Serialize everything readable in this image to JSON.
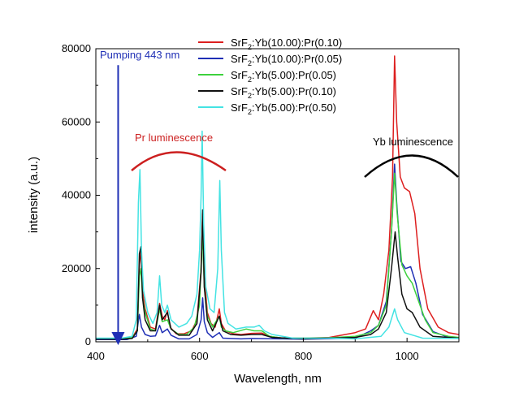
{
  "chart_data": {
    "type": "line",
    "title": "",
    "xlabel": "Wavelength, nm",
    "ylabel": "intensity (a.u.)",
    "xlim": [
      400,
      1100
    ],
    "ylim": [
      0,
      80000
    ],
    "x_ticks": [
      400,
      600,
      800,
      1000
    ],
    "y_ticks": [
      0,
      20000,
      40000,
      60000,
      80000
    ],
    "legend_position": "top-center",
    "series": [
      {
        "name_parts": [
          "SrF",
          "2",
          ":Yb(10.00):Pr(0.10)"
        ],
        "color": "#dd1f1f",
        "points": [
          [
            400,
            900
          ],
          [
            440,
            900
          ],
          [
            470,
            1100
          ],
          [
            480,
            3500
          ],
          [
            484,
            21000
          ],
          [
            487,
            25000
          ],
          [
            490,
            14000
          ],
          [
            495,
            9000
          ],
          [
            505,
            4000
          ],
          [
            515,
            3500
          ],
          [
            523,
            10500
          ],
          [
            528,
            7000
          ],
          [
            533,
            6000
          ],
          [
            538,
            8500
          ],
          [
            543,
            4000
          ],
          [
            555,
            2200
          ],
          [
            570,
            2200
          ],
          [
            585,
            3000
          ],
          [
            595,
            6000
          ],
          [
            603,
            20000
          ],
          [
            606,
            35000
          ],
          [
            609,
            18000
          ],
          [
            615,
            8000
          ],
          [
            622,
            5000
          ],
          [
            630,
            4000
          ],
          [
            638,
            9000
          ],
          [
            642,
            5000
          ],
          [
            650,
            3000
          ],
          [
            665,
            2200
          ],
          [
            680,
            2000
          ],
          [
            700,
            2300
          ],
          [
            720,
            2400
          ],
          [
            735,
            1500
          ],
          [
            760,
            1000
          ],
          [
            800,
            1000
          ],
          [
            850,
            1200
          ],
          [
            900,
            2500
          ],
          [
            920,
            3500
          ],
          [
            935,
            8500
          ],
          [
            945,
            6000
          ],
          [
            955,
            13000
          ],
          [
            965,
            25000
          ],
          [
            972,
            45000
          ],
          [
            976,
            78000
          ],
          [
            980,
            60000
          ],
          [
            987,
            45000
          ],
          [
            995,
            42000
          ],
          [
            1005,
            41000
          ],
          [
            1015,
            35000
          ],
          [
            1025,
            20000
          ],
          [
            1040,
            9000
          ],
          [
            1060,
            4000
          ],
          [
            1080,
            2500
          ],
          [
            1100,
            2000
          ]
        ]
      },
      {
        "name_parts": [
          "SrF",
          "2",
          ":Yb(10.00):Pr(0.05)"
        ],
        "color": "#1f2fb5",
        "points": [
          [
            400,
            600
          ],
          [
            460,
            600
          ],
          [
            478,
            1500
          ],
          [
            484,
            7500
          ],
          [
            488,
            4000
          ],
          [
            495,
            2000
          ],
          [
            505,
            1500
          ],
          [
            515,
            1600
          ],
          [
            523,
            4500
          ],
          [
            528,
            2500
          ],
          [
            538,
            3500
          ],
          [
            545,
            1800
          ],
          [
            560,
            800
          ],
          [
            580,
            800
          ],
          [
            595,
            2000
          ],
          [
            603,
            6000
          ],
          [
            606,
            12000
          ],
          [
            609,
            5500
          ],
          [
            615,
            2500
          ],
          [
            625,
            1200
          ],
          [
            638,
            2500
          ],
          [
            645,
            1000
          ],
          [
            680,
            800
          ],
          [
            700,
            900
          ],
          [
            800,
            700
          ],
          [
            900,
            1000
          ],
          [
            930,
            3000
          ],
          [
            945,
            4500
          ],
          [
            960,
            11000
          ],
          [
            970,
            30000
          ],
          [
            976,
            48500
          ],
          [
            980,
            38000
          ],
          [
            988,
            22000
          ],
          [
            997,
            20000
          ],
          [
            1007,
            20500
          ],
          [
            1017,
            16000
          ],
          [
            1030,
            7500
          ],
          [
            1050,
            2800
          ],
          [
            1080,
            1200
          ],
          [
            1100,
            1000
          ]
        ]
      },
      {
        "name_parts": [
          "SrF",
          "2",
          ":Yb(5.00):Pr(0.05)"
        ],
        "color": "#3dd13d",
        "points": [
          [
            400,
            900
          ],
          [
            440,
            900
          ],
          [
            470,
            1100
          ],
          [
            480,
            3000
          ],
          [
            484,
            18000
          ],
          [
            487,
            20000
          ],
          [
            490,
            12000
          ],
          [
            495,
            8000
          ],
          [
            505,
            3500
          ],
          [
            515,
            3000
          ],
          [
            523,
            9000
          ],
          [
            528,
            5500
          ],
          [
            538,
            6000
          ],
          [
            545,
            3500
          ],
          [
            560,
            2000
          ],
          [
            575,
            2000
          ],
          [
            590,
            4000
          ],
          [
            600,
            10000
          ],
          [
            604,
            25000
          ],
          [
            606,
            28000
          ],
          [
            609,
            15000
          ],
          [
            615,
            7000
          ],
          [
            625,
            4000
          ],
          [
            638,
            7000
          ],
          [
            642,
            4000
          ],
          [
            650,
            3000
          ],
          [
            665,
            2500
          ],
          [
            690,
            3500
          ],
          [
            705,
            3000
          ],
          [
            720,
            3000
          ],
          [
            735,
            1500
          ],
          [
            760,
            1000
          ],
          [
            800,
            1000
          ],
          [
            850,
            1100
          ],
          [
            900,
            1500
          ],
          [
            930,
            2500
          ],
          [
            945,
            4500
          ],
          [
            960,
            10000
          ],
          [
            970,
            30000
          ],
          [
            976,
            46000
          ],
          [
            981,
            35000
          ],
          [
            990,
            21000
          ],
          [
            1000,
            18000
          ],
          [
            1010,
            16000
          ],
          [
            1020,
            12000
          ],
          [
            1035,
            6000
          ],
          [
            1050,
            2500
          ],
          [
            1080,
            1500
          ],
          [
            1100,
            1200
          ]
        ]
      },
      {
        "name_parts": [
          "SrF",
          "2",
          ":Yb(5.00):Pr(0.10)"
        ],
        "color": "#111111",
        "points": [
          [
            400,
            700
          ],
          [
            450,
            700
          ],
          [
            470,
            900
          ],
          [
            480,
            3000
          ],
          [
            484,
            24000
          ],
          [
            487,
            26000
          ],
          [
            490,
            12000
          ],
          [
            495,
            6000
          ],
          [
            505,
            3000
          ],
          [
            515,
            3000
          ],
          [
            523,
            10000
          ],
          [
            528,
            6000
          ],
          [
            538,
            8000
          ],
          [
            545,
            3500
          ],
          [
            560,
            1800
          ],
          [
            580,
            1800
          ],
          [
            595,
            5000
          ],
          [
            603,
            19000
          ],
          [
            606,
            36000
          ],
          [
            609,
            15000
          ],
          [
            615,
            6000
          ],
          [
            625,
            3000
          ],
          [
            638,
            7000
          ],
          [
            645,
            3000
          ],
          [
            660,
            2000
          ],
          [
            680,
            1800
          ],
          [
            700,
            2000
          ],
          [
            720,
            2000
          ],
          [
            740,
            1200
          ],
          [
            800,
            800
          ],
          [
            900,
            1200
          ],
          [
            930,
            2000
          ],
          [
            945,
            3500
          ],
          [
            960,
            8000
          ],
          [
            970,
            20000
          ],
          [
            977,
            30000
          ],
          [
            982,
            23000
          ],
          [
            990,
            13000
          ],
          [
            1000,
            9000
          ],
          [
            1010,
            8000
          ],
          [
            1025,
            4000
          ],
          [
            1050,
            1500
          ],
          [
            1080,
            1200
          ],
          [
            1100,
            1000
          ]
        ]
      },
      {
        "name_parts": [
          "SrF",
          "2",
          ":Yb(5.00):Pr(0.50)"
        ],
        "color": "#44e3e3",
        "points": [
          [
            400,
            1000
          ],
          [
            450,
            1000
          ],
          [
            470,
            1500
          ],
          [
            478,
            6000
          ],
          [
            482,
            38000
          ],
          [
            485,
            47000
          ],
          [
            488,
            25000
          ],
          [
            492,
            14000
          ],
          [
            500,
            8000
          ],
          [
            510,
            5000
          ],
          [
            518,
            8000
          ],
          [
            523,
            18000
          ],
          [
            527,
            10000
          ],
          [
            533,
            8000
          ],
          [
            538,
            10000
          ],
          [
            545,
            6000
          ],
          [
            560,
            4000
          ],
          [
            575,
            5000
          ],
          [
            585,
            7000
          ],
          [
            595,
            13000
          ],
          [
            600,
            25000
          ],
          [
            603,
            40000
          ],
          [
            605,
            57500
          ],
          [
            608,
            32000
          ],
          [
            612,
            15000
          ],
          [
            620,
            9000
          ],
          [
            628,
            8000
          ],
          [
            635,
            20000
          ],
          [
            639,
            44000
          ],
          [
            642,
            25000
          ],
          [
            648,
            8000
          ],
          [
            655,
            5000
          ],
          [
            670,
            3500
          ],
          [
            690,
            4000
          ],
          [
            705,
            4000
          ],
          [
            715,
            4500
          ],
          [
            725,
            3000
          ],
          [
            740,
            2000
          ],
          [
            780,
            1000
          ],
          [
            850,
            1000
          ],
          [
            900,
            800
          ],
          [
            950,
            1500
          ],
          [
            965,
            4000
          ],
          [
            976,
            9000
          ],
          [
            982,
            6000
          ],
          [
            995,
            2500
          ],
          [
            1030,
            1000
          ],
          [
            1100,
            900
          ]
        ]
      }
    ],
    "annotations": {
      "pumping_label": "Pumping 443 nm",
      "pumping_x": 443,
      "pumping_top": 75500,
      "pr_label": "Pr luminescence",
      "yb_label": "Yb luminescence"
    }
  }
}
